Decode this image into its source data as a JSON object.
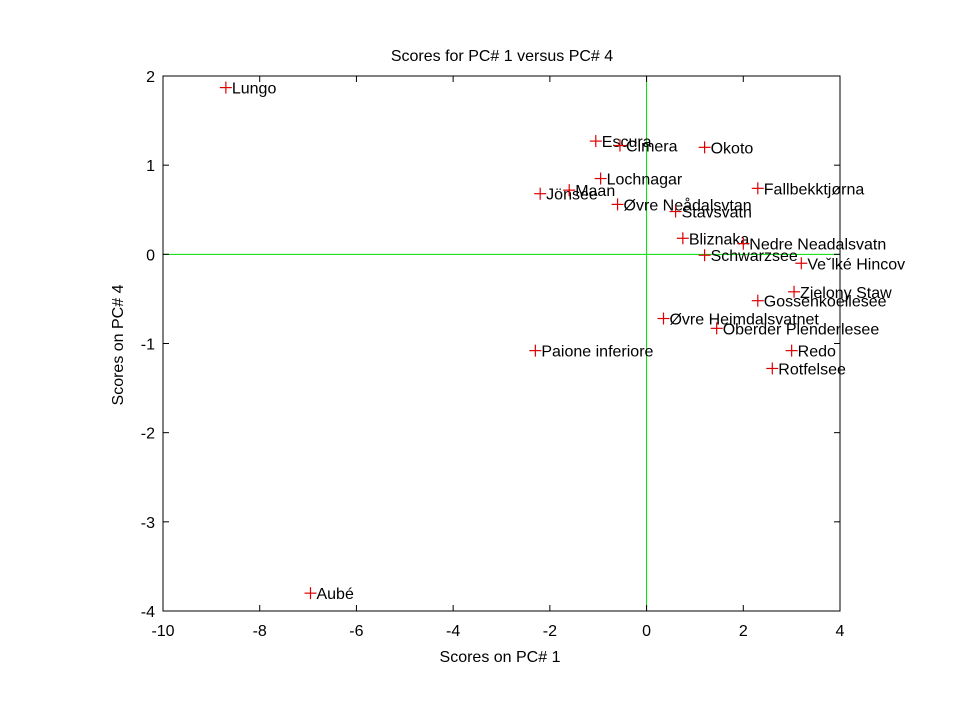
{
  "chart_data": {
    "type": "scatter",
    "title": "Scores for PC# 1 versus PC# 4",
    "xlabel": "Scores on PC# 1",
    "ylabel": "Scores on PC# 4",
    "xlim": [
      -10,
      4
    ],
    "ylim": [
      -4,
      2
    ],
    "xticks": [
      "-10",
      "-8",
      "-6",
      "-4",
      "-2",
      "0",
      "2",
      "4"
    ],
    "yticks": [
      "-4",
      "-3",
      "-2",
      "-1",
      "0",
      "1",
      "2"
    ],
    "grid": false,
    "reference_lines": {
      "x": 0,
      "y": 0,
      "color": "#00dd00"
    },
    "marker": "+",
    "marker_color": "#dd0000",
    "points": [
      {
        "label": "Lungo",
        "x": -8.7,
        "y": 1.87
      },
      {
        "label": "Aubé",
        "x": -6.95,
        "y": -3.8
      },
      {
        "label": "Paione inferiore",
        "x": -2.3,
        "y": -1.08
      },
      {
        "label": "Jönsee",
        "x": -2.2,
        "y": 0.68
      },
      {
        "label": "Maan",
        "x": -1.6,
        "y": 0.72
      },
      {
        "label": "Escura",
        "x": -1.05,
        "y": 1.27
      },
      {
        "label": "Lochnagar",
        "x": -0.95,
        "y": 0.85
      },
      {
        "label": "Cimera",
        "x": -0.55,
        "y": 1.22
      },
      {
        "label": "Øvre Neådalsvtan",
        "x": -0.6,
        "y": 0.56
      },
      {
        "label": "Okoto",
        "x": 1.2,
        "y": 1.2
      },
      {
        "label": "Stavsvatn",
        "x": 0.6,
        "y": 0.48
      },
      {
        "label": "Bliznaka",
        "x": 0.75,
        "y": 0.18
      },
      {
        "label": "Schwarzsee",
        "x": 1.2,
        "y": -0.01
      },
      {
        "label": "Fallbekktjørna",
        "x": 2.3,
        "y": 0.74
      },
      {
        "label": "Nedre Neadalsvatn",
        "x": 2.0,
        "y": 0.12
      },
      {
        "label": "Veˇlké Hincov",
        "x": 3.2,
        "y": -0.1
      },
      {
        "label": "Zielony Staw",
        "x": 3.05,
        "y": -0.42
      },
      {
        "label": "Gossenkoellesee",
        "x": 2.3,
        "y": -0.52
      },
      {
        "label": "Øvre Heimdalsvatnet",
        "x": 0.35,
        "y": -0.72
      },
      {
        "label": "Oberder Plenderlesee",
        "x": 1.45,
        "y": -0.83
      },
      {
        "label": "Redo",
        "x": 3.0,
        "y": -1.08
      },
      {
        "label": "Rotfelsee",
        "x": 2.6,
        "y": -1.28
      }
    ]
  }
}
